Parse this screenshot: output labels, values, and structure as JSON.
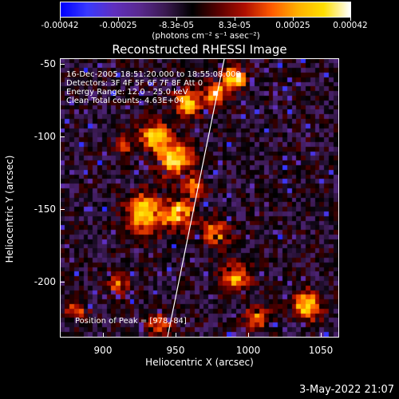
{
  "colorbar": {
    "labels": [
      "-0.00042",
      "-0.00025",
      "-8.3e-05",
      "8.3e-05",
      "0.00025",
      "0.00042"
    ],
    "units": "(photons cm⁻² s⁻¹ asec⁻²)"
  },
  "title": "Reconstructed RHESSI Image",
  "info": {
    "time": "16-Dec-2005 18:51:20.000 to 18:55:08.000",
    "detectors": "Detectors: 3F 4F 5F 6F 7F 8F Att 0",
    "energy": "Energy Range: 12.0 - 25.0 keV",
    "clean": "Clean     Total counts: 4.63E+04",
    "peak": "Position of Peak = [978,-84]"
  },
  "axes": {
    "xlabel": "Heliocentric X (arcsec)",
    "ylabel": "Heliocentric Y (arcsec)",
    "xticks": [
      "900",
      "950",
      "1000",
      "1050"
    ],
    "yticks": [
      "-50",
      "-100",
      "-150",
      "-200"
    ],
    "xrange": [
      870,
      1062
    ],
    "yrange": [
      -240,
      -48
    ]
  },
  "footer": {
    "date": "3-May-2022 21:07"
  },
  "colors": {
    "background": "#000000",
    "colormap": [
      "#0000ff",
      "#3a3aff",
      "#6030c0",
      "#5a2a90",
      "#3a1a50",
      "#000000",
      "#5a0000",
      "#b01000",
      "#ff5a00",
      "#ffb000",
      "#ffe000",
      "#ffffff"
    ]
  }
}
